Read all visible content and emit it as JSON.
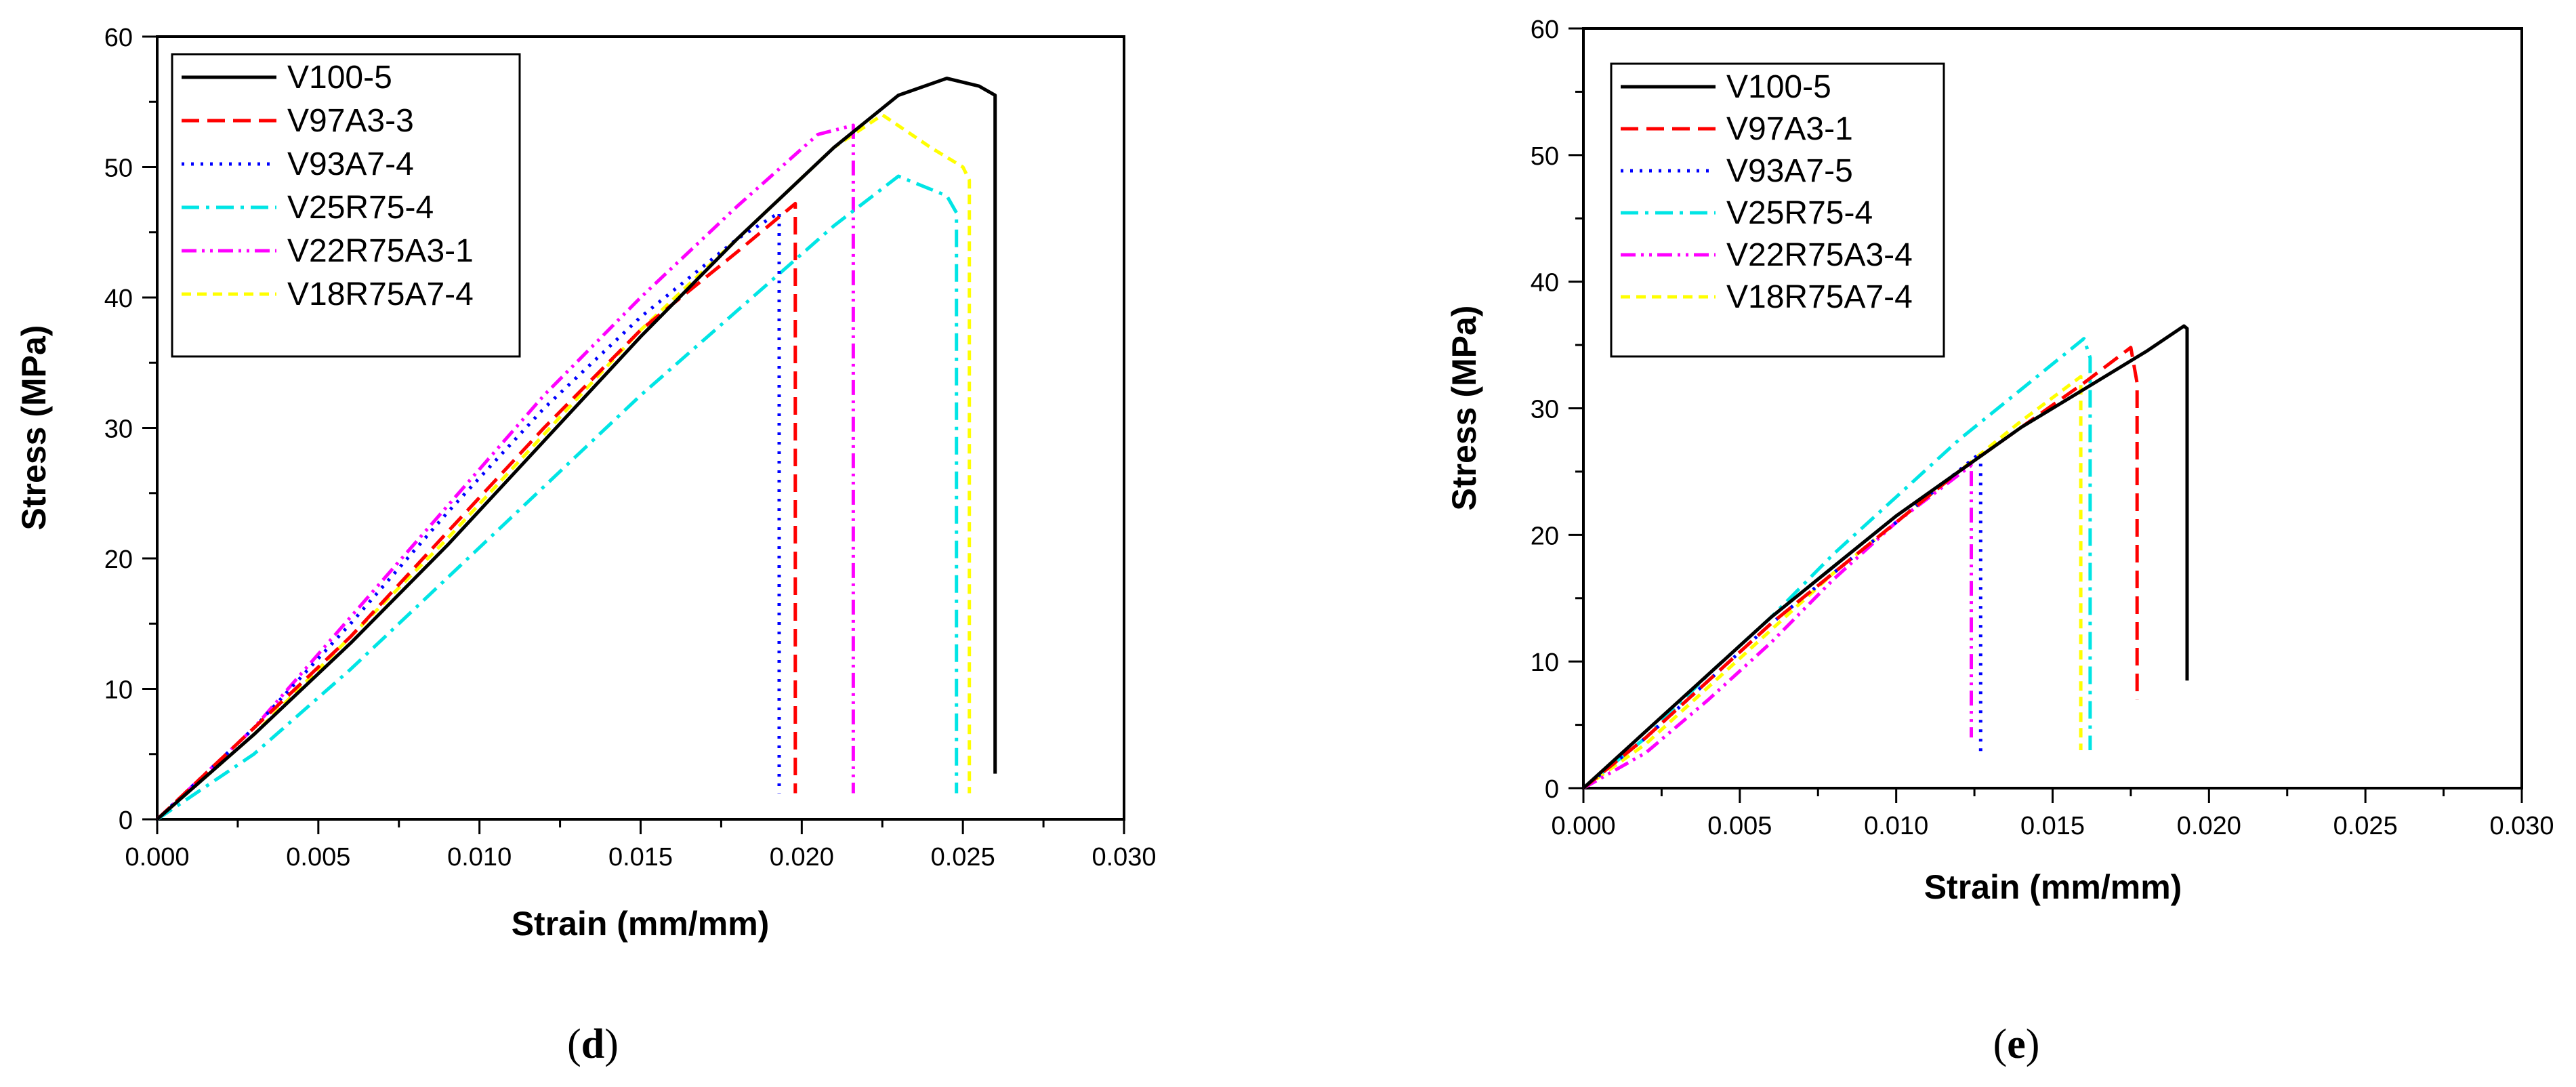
{
  "figure": {
    "panels": [
      {
        "caption_open": "(",
        "caption_letter": "d",
        "caption_close": ")"
      },
      {
        "caption_open": "(",
        "caption_letter": "e",
        "caption_close": ")"
      }
    ]
  },
  "chart_data": [
    {
      "type": "line",
      "panel": "d",
      "title": "",
      "xlabel": "Strain (mm/mm)",
      "ylabel": "Stress (MPa)",
      "xlim": [
        0,
        0.03
      ],
      "ylim": [
        0,
        60
      ],
      "xticks": [
        0,
        0.005,
        0.01,
        0.015,
        0.02,
        0.025,
        0.03
      ],
      "xtick_labels": [
        "0.000",
        "0.005",
        "0.010",
        "0.015",
        "0.020",
        "0.025",
        "0.030"
      ],
      "yticks": [
        0,
        10,
        20,
        30,
        40,
        50,
        60
      ],
      "ytick_labels": [
        "0",
        "10",
        "20",
        "30",
        "40",
        "50",
        "60"
      ],
      "grid": false,
      "legend_position": "top-left",
      "series": [
        {
          "name": "V100-5",
          "color": "#000000",
          "dash": "solid",
          "x": [
            0,
            0.003,
            0.006,
            0.009,
            0.012,
            0.015,
            0.018,
            0.021,
            0.023,
            0.0245,
            0.0255,
            0.026,
            0.026
          ],
          "y": [
            0,
            6.5,
            13.5,
            21,
            29,
            37,
            44.5,
            51.5,
            55.5,
            56.8,
            56.2,
            55.5,
            3.5
          ]
        },
        {
          "name": "V97A3-3",
          "color": "#ff0000",
          "dash": "dashed",
          "x": [
            0,
            0.003,
            0.006,
            0.009,
            0.012,
            0.015,
            0.018,
            0.0198,
            0.0198
          ],
          "y": [
            0,
            7,
            14,
            22,
            30,
            37.5,
            43.5,
            47.2,
            2
          ]
        },
        {
          "name": "V93A7-4",
          "color": "#0000ff",
          "dash": "dotted",
          "x": [
            0,
            0.003,
            0.006,
            0.009,
            0.012,
            0.015,
            0.018,
            0.0193,
            0.0193
          ],
          "y": [
            0,
            7,
            15,
            23.5,
            31.5,
            38.5,
            44.5,
            46.5,
            2
          ]
        },
        {
          "name": "V25R75-4",
          "color": "#00e5e5",
          "dash": "dashdot",
          "x": [
            0,
            0.003,
            0.006,
            0.009,
            0.012,
            0.015,
            0.018,
            0.021,
            0.023,
            0.0245,
            0.0248,
            0.0248
          ],
          "y": [
            0,
            5,
            11.5,
            18.5,
            25.5,
            32.5,
            39,
            45.5,
            49.3,
            47.8,
            46.5,
            2
          ]
        },
        {
          "name": "V22R75A3-1",
          "color": "#ff00ff",
          "dash": "dashdotdot",
          "x": [
            0,
            0.003,
            0.006,
            0.009,
            0.012,
            0.015,
            0.018,
            0.0205,
            0.0216,
            0.0216
          ],
          "y": [
            0,
            7,
            15.5,
            24,
            32.5,
            40,
            47,
            52.5,
            53.2,
            2
          ]
        },
        {
          "name": "V18R75A7-4",
          "color": "#ffff00",
          "dash": "shortdash",
          "x": [
            0,
            0.003,
            0.006,
            0.009,
            0.012,
            0.015,
            0.018,
            0.021,
            0.0225,
            0.024,
            0.025,
            0.0252,
            0.0252
          ],
          "y": [
            0,
            6.5,
            14,
            21.5,
            29.5,
            37.5,
            44.5,
            51.5,
            54,
            51.5,
            50,
            49,
            2
          ]
        }
      ]
    },
    {
      "type": "line",
      "panel": "e",
      "title": "",
      "xlabel": "Strain (mm/mm)",
      "ylabel": "Stress (MPa)",
      "xlim": [
        0,
        0.03
      ],
      "ylim": [
        0,
        60
      ],
      "xticks": [
        0,
        0.005,
        0.01,
        0.015,
        0.02,
        0.025,
        0.03
      ],
      "xtick_labels": [
        "0.000",
        "0.005",
        "0.010",
        "0.015",
        "0.020",
        "0.025",
        "0.030"
      ],
      "yticks": [
        0,
        10,
        20,
        30,
        40,
        50,
        60
      ],
      "ytick_labels": [
        "0",
        "10",
        "20",
        "30",
        "40",
        "50",
        "60"
      ],
      "grid": false,
      "legend_position": "top-left",
      "series": [
        {
          "name": "V100-5",
          "color": "#000000",
          "dash": "solid",
          "x": [
            0,
            0.002,
            0.004,
            0.006,
            0.008,
            0.01,
            0.012,
            0.014,
            0.016,
            0.018,
            0.0192,
            0.0193,
            0.0193
          ],
          "y": [
            0,
            4.5,
            9,
            13.5,
            17.5,
            21.5,
            25,
            28.5,
            31.5,
            34.5,
            36.5,
            36.3,
            8.5
          ]
        },
        {
          "name": "V97A3-1",
          "color": "#ff0000",
          "dash": "dashed",
          "x": [
            0,
            0.002,
            0.004,
            0.006,
            0.008,
            0.01,
            0.012,
            0.014,
            0.016,
            0.0175,
            0.0177,
            0.0177
          ],
          "y": [
            0,
            4,
            8.5,
            13,
            17,
            21,
            25,
            28.5,
            32,
            34.8,
            32,
            7
          ]
        },
        {
          "name": "V93A7-5",
          "color": "#0000ff",
          "dash": "dotted",
          "x": [
            0,
            0.002,
            0.004,
            0.006,
            0.008,
            0.01,
            0.0127,
            0.0127
          ],
          "y": [
            0,
            4,
            8.5,
            13,
            17,
            21,
            26.5,
            2.5
          ]
        },
        {
          "name": "V25R75-4",
          "color": "#00e5e5",
          "dash": "dashdot",
          "x": [
            0,
            0.002,
            0.004,
            0.006,
            0.008,
            0.01,
            0.012,
            0.014,
            0.016,
            0.0162,
            0.0162
          ],
          "y": [
            0,
            4,
            9,
            13.5,
            18.5,
            23,
            27.5,
            31.5,
            35.5,
            34,
            3
          ]
        },
        {
          "name": "V22R75A3-4",
          "color": "#ff00ff",
          "dash": "dashdotdot",
          "x": [
            0,
            0.002,
            0.004,
            0.006,
            0.008,
            0.01,
            0.0124,
            0.0124
          ],
          "y": [
            0,
            2.8,
            7,
            11.5,
            16.5,
            21,
            25.5,
            4
          ]
        },
        {
          "name": "V18R75A7-4",
          "color": "#ffff00",
          "dash": "shortdash",
          "x": [
            0,
            0.002,
            0.004,
            0.006,
            0.008,
            0.01,
            0.012,
            0.014,
            0.0159,
            0.0159
          ],
          "y": [
            0,
            3.5,
            8,
            12.5,
            17,
            21,
            25,
            29,
            32.5,
            3
          ]
        }
      ]
    }
  ]
}
